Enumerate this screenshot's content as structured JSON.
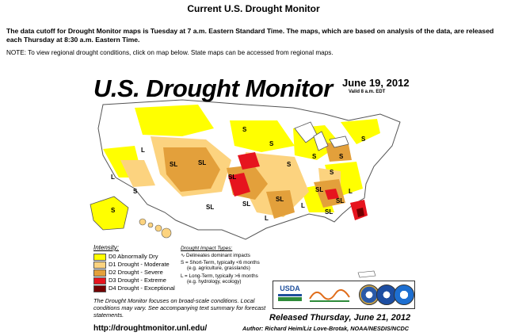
{
  "page": {
    "title": "Current U.S. Drought Monitor",
    "cutoff_text": "The data cutoff for Drought Monitor maps is Tuesday at 7 a.m. Eastern Standard Time. The maps, which are based on analysis of the data, are released each Thursday at 8:30 a.m. Eastern Time.",
    "note_text": "NOTE: To view regional drought conditions, click on map below. State maps can be accessed from regional maps."
  },
  "map": {
    "title": "U.S. Drought Monitor",
    "date": "June 19, 2012",
    "valid": "Valid 8 a.m. EDT",
    "intensity_title": "Intensity:",
    "legend": [
      {
        "code": "D0",
        "label": "D0 Abnormally Dry",
        "color": "#ffff00"
      },
      {
        "code": "D1",
        "label": "D1 Drought - Moderate",
        "color": "#fcd37f"
      },
      {
        "code": "D2",
        "label": "D2 Drought - Severe",
        "color": "#e3a03b"
      },
      {
        "code": "D3",
        "label": "D3 Drought - Extreme",
        "color": "#e6141e"
      },
      {
        "code": "D4",
        "label": "D4 Drought - Exceptional",
        "color": "#730000"
      }
    ],
    "impact_title": "Drought Impact Types:",
    "impact_lines": [
      "Delineates dominant impacts",
      "S = Short-Term, typically <6 months",
      "(e.g. agriculture, grasslands)",
      "L = Long-Term, typically >6 months",
      "(e.g. hydrology, ecology)"
    ],
    "footnote": "The Drought Monitor focuses on broad-scale conditions. Local conditions may vary. See accompanying text summary for forecast statements.",
    "url": "http://droughtmonitor.unl.edu/",
    "released": "Released Thursday, June 21, 2012",
    "authors": "Author: Richard Heim/Liz Love-Brotak, NOAA/NESDIS/NCDC",
    "logos": {
      "usda": "USDA"
    },
    "map_labels": [
      "S",
      "SL",
      "SL",
      "SL",
      "SL",
      "SL",
      "SL",
      "SL",
      "L",
      "L",
      "L",
      "S",
      "S",
      "S",
      "S",
      "SL",
      "L",
      "SL",
      "S",
      "L",
      "S",
      "S",
      "S"
    ]
  }
}
